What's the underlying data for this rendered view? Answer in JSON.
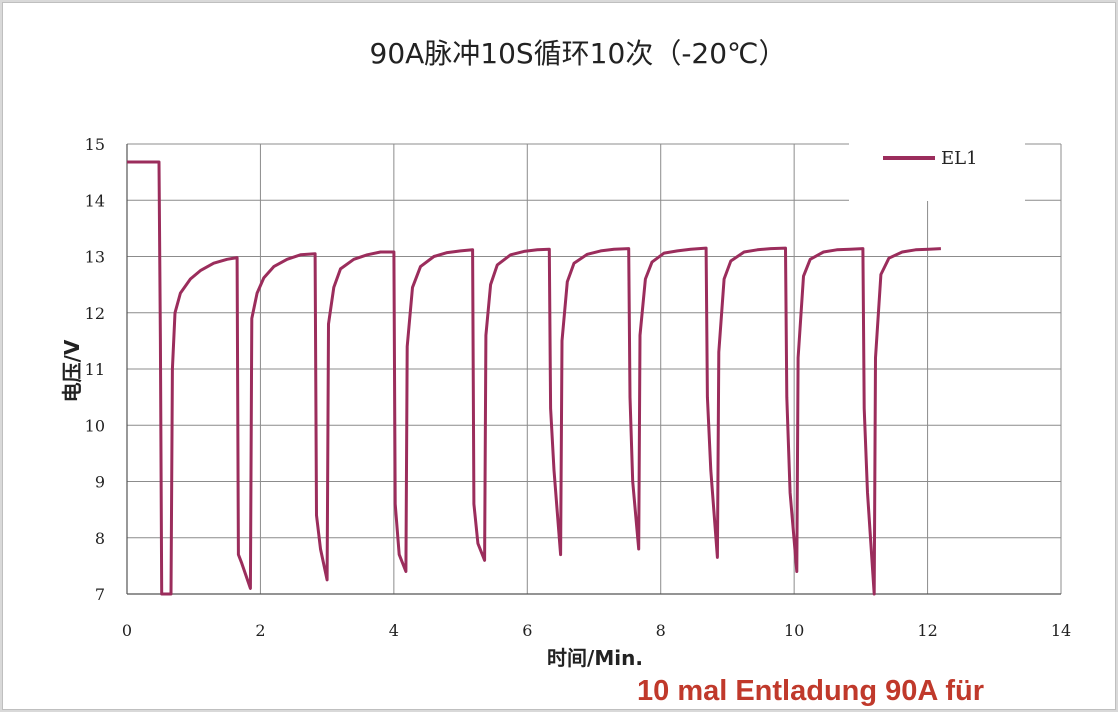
{
  "chart_data": {
    "type": "line",
    "title": "90A脉冲10S循环10次（-20℃）",
    "xlabel": "时间/Min.",
    "ylabel": "电压/V",
    "xlim": [
      0,
      14
    ],
    "ylim": [
      7,
      15
    ],
    "xticks": [
      "0",
      "2",
      "4",
      "6",
      "8",
      "10",
      "12",
      "14"
    ],
    "yticks": [
      "7",
      "8",
      "9",
      "10",
      "11",
      "12",
      "13",
      "14",
      "15"
    ],
    "grid": true,
    "legend_position": "top-right",
    "series": [
      {
        "name": "EL1",
        "color": "#9b2d5c",
        "x": [
          0,
          0.48,
          0.5,
          0.52,
          0.66,
          0.68,
          0.72,
          0.8,
          0.95,
          1.1,
          1.3,
          1.5,
          1.65,
          1.67,
          1.72,
          1.85,
          1.87,
          1.95,
          2.05,
          2.2,
          2.4,
          2.6,
          2.82,
          2.84,
          2.9,
          3.0,
          3.02,
          3.1,
          3.2,
          3.4,
          3.6,
          3.8,
          4.0,
          4.02,
          4.08,
          4.18,
          4.2,
          4.28,
          4.4,
          4.6,
          4.8,
          5.0,
          5.18,
          5.2,
          5.26,
          5.36,
          5.38,
          5.45,
          5.55,
          5.75,
          5.95,
          6.15,
          6.33,
          6.35,
          6.4,
          6.5,
          6.52,
          6.6,
          6.7,
          6.9,
          7.1,
          7.3,
          7.52,
          7.54,
          7.58,
          7.67,
          7.69,
          7.77,
          7.87,
          8.05,
          8.25,
          8.45,
          8.68,
          8.7,
          8.75,
          8.85,
          8.87,
          8.95,
          9.05,
          9.25,
          9.45,
          9.65,
          9.87,
          9.89,
          9.94,
          10.04,
          10.06,
          10.14,
          10.24,
          10.44,
          10.64,
          10.84,
          11.03,
          11.05,
          11.1,
          11.2,
          11.22,
          11.3,
          11.42,
          11.62,
          11.82,
          12.02,
          12.2
        ],
        "y": [
          14.68,
          14.68,
          11.5,
          7.0,
          7.0,
          11.0,
          12.0,
          12.35,
          12.6,
          12.75,
          12.88,
          12.95,
          12.98,
          7.7,
          7.55,
          7.1,
          11.9,
          12.35,
          12.62,
          12.82,
          12.95,
          13.03,
          13.05,
          8.4,
          7.8,
          7.25,
          11.8,
          12.45,
          12.78,
          12.95,
          13.03,
          13.08,
          13.08,
          8.6,
          7.7,
          7.4,
          11.4,
          12.45,
          12.82,
          13.0,
          13.07,
          13.1,
          13.12,
          8.6,
          7.9,
          7.6,
          11.6,
          12.5,
          12.85,
          13.03,
          13.09,
          13.12,
          13.13,
          10.3,
          9.2,
          7.7,
          11.5,
          12.55,
          12.88,
          13.04,
          13.1,
          13.13,
          13.14,
          10.5,
          9.0,
          7.8,
          11.6,
          12.6,
          12.9,
          13.06,
          13.1,
          13.13,
          13.15,
          10.5,
          9.2,
          7.65,
          11.3,
          12.6,
          12.92,
          13.08,
          13.12,
          13.14,
          13.15,
          10.5,
          8.8,
          7.4,
          11.2,
          12.65,
          12.95,
          13.08,
          13.12,
          13.13,
          13.14,
          10.3,
          8.8,
          7.0,
          11.2,
          12.68,
          12.97,
          13.08,
          13.12,
          13.13,
          13.14
        ]
      }
    ]
  },
  "caption": "10 mal Entladung 90A für"
}
